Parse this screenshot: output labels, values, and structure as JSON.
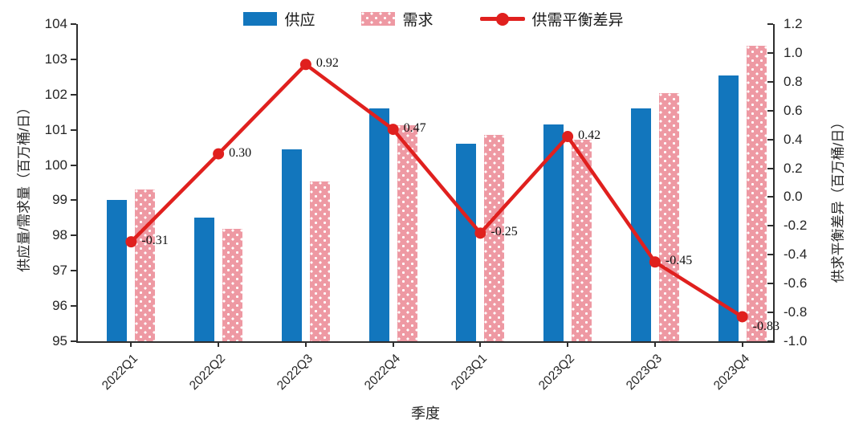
{
  "chart": {
    "legend": [
      {
        "label": "供应",
        "swatch": "solid-bar",
        "color": "#1276bd"
      },
      {
        "label": "需求",
        "swatch": "dotted-bar",
        "color": "#ee99a3"
      },
      {
        "label": "供需平衡差异",
        "swatch": "line-marker",
        "color": "#e0201e"
      }
    ],
    "left_axis_title": "供应量/需求量（百万桶/日）",
    "right_axis_title": "供求平衡差异（百万桶/日）",
    "x_axis_title": "季度"
  },
  "chart_data": {
    "type": "combo-bar-line",
    "title": "",
    "categories": [
      "2022Q1",
      "2022Q2",
      "2022Q3",
      "2022Q4",
      "2023Q1",
      "2023Q2",
      "2023Q3",
      "2023Q4"
    ],
    "series": [
      {
        "name": "供应",
        "type": "bar",
        "axis": "left",
        "color": "#1276bd",
        "pattern": "solid",
        "values": [
          99.0,
          98.5,
          100.45,
          101.6,
          100.6,
          101.15,
          101.6,
          102.55
        ]
      },
      {
        "name": "需求",
        "type": "bar",
        "axis": "left",
        "color": "#ee99a3",
        "pattern": "white-dots",
        "values": [
          99.31,
          98.2,
          99.53,
          101.13,
          100.85,
          100.73,
          102.05,
          103.38
        ]
      },
      {
        "name": "供需平衡差异",
        "type": "line",
        "axis": "right",
        "color": "#e0201e",
        "marker": "circle",
        "values": [
          -0.31,
          0.3,
          0.92,
          0.47,
          -0.25,
          0.42,
          -0.45,
          -0.83
        ],
        "point_labels": [
          "-0.31",
          "0.30",
          "0.92",
          "0.47",
          "-0.25",
          "0.42",
          "-0.45",
          "-0.83"
        ],
        "point_label_dy": [
          0,
          0,
          0,
          0,
          0,
          0,
          0,
          14
        ]
      }
    ],
    "left_axis": {
      "min": 95,
      "max": 104,
      "step": 1,
      "ticks": [
        "95",
        "96",
        "97",
        "98",
        "99",
        "100",
        "101",
        "102",
        "103",
        "104"
      ],
      "title": "供应量/需求量（百万桶/日）"
    },
    "right_axis": {
      "min": -1.0,
      "max": 1.2,
      "step": 0.2,
      "ticks": [
        "-1.0",
        "-0.8",
        "-0.6",
        "-0.4",
        "-0.2",
        "0.0",
        "0.2",
        "0.4",
        "0.6",
        "0.8",
        "1.0",
        "1.2"
      ],
      "title": "供求平衡差异（百万桶/日）"
    },
    "xlabel": "季度",
    "grid": false,
    "legend_position": "top-center",
    "axis_color": "#2e2e2e",
    "line_width": 4.5,
    "marker_radius": 7
  }
}
